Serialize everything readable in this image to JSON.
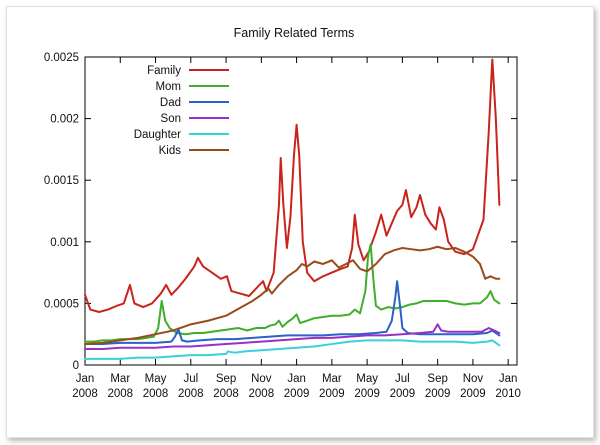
{
  "chart_data": {
    "type": "line",
    "title": "Family Related Terms",
    "xlabel": "",
    "ylabel": "",
    "ylim": [
      0,
      0.0025
    ],
    "yticks": [
      0,
      0.0005,
      0.001,
      0.0015,
      0.002,
      0.0025
    ],
    "ytick_labels": [
      "0",
      "0.0005",
      "0.001",
      "0.0015",
      "0.002",
      "0.0025"
    ],
    "xlim": [
      0,
      24.5
    ],
    "xticks": [
      {
        "x": 0,
        "month": "Jan",
        "year": "2008"
      },
      {
        "x": 2,
        "month": "Mar",
        "year": "2008"
      },
      {
        "x": 4,
        "month": "May",
        "year": "2008"
      },
      {
        "x": 6,
        "month": "Jul",
        "year": "2008"
      },
      {
        "x": 8,
        "month": "Sep",
        "year": "2008"
      },
      {
        "x": 10,
        "month": "Nov",
        "year": "2008"
      },
      {
        "x": 12,
        "month": "Jan",
        "year": "2009"
      },
      {
        "x": 14,
        "month": "Mar",
        "year": "2009"
      },
      {
        "x": 16,
        "month": "May",
        "year": "2009"
      },
      {
        "x": 18,
        "month": "Jul",
        "year": "2009"
      },
      {
        "x": 20,
        "month": "Sep",
        "year": "2009"
      },
      {
        "x": 22,
        "month": "Nov",
        "year": "2009"
      },
      {
        "x": 24,
        "month": "Jan",
        "year": "2010"
      }
    ],
    "grid": false,
    "legend_position": "top-left",
    "series": [
      {
        "name": "Family",
        "color": "#c8241c",
        "points": [
          [
            0,
            0.00057
          ],
          [
            0.3,
            0.00045
          ],
          [
            0.8,
            0.00043
          ],
          [
            1.3,
            0.00045
          ],
          [
            1.8,
            0.00048
          ],
          [
            2.2,
            0.0005
          ],
          [
            2.55,
            0.00065
          ],
          [
            2.8,
            0.0005
          ],
          [
            3.3,
            0.00047
          ],
          [
            3.8,
            0.0005
          ],
          [
            4.3,
            0.00058
          ],
          [
            4.6,
            0.00065
          ],
          [
            4.9,
            0.00057
          ],
          [
            5.3,
            0.00063
          ],
          [
            5.7,
            0.0007
          ],
          [
            6.2,
            0.0008
          ],
          [
            6.4,
            0.00087
          ],
          [
            6.7,
            0.0008
          ],
          [
            7.2,
            0.00075
          ],
          [
            7.7,
            0.0007
          ],
          [
            8.05,
            0.00072
          ],
          [
            8.3,
            0.0006
          ],
          [
            8.8,
            0.00058
          ],
          [
            9.3,
            0.00056
          ],
          [
            9.7,
            0.00062
          ],
          [
            10.1,
            0.00068
          ],
          [
            10.3,
            0.0006
          ],
          [
            10.7,
            0.00075
          ],
          [
            11.0,
            0.0013
          ],
          [
            11.1,
            0.00168
          ],
          [
            11.25,
            0.0013
          ],
          [
            11.45,
            0.00095
          ],
          [
            11.65,
            0.0012
          ],
          [
            11.85,
            0.0017
          ],
          [
            12.0,
            0.00195
          ],
          [
            12.15,
            0.0017
          ],
          [
            12.35,
            0.001
          ],
          [
            12.6,
            0.00075
          ],
          [
            13.0,
            0.00068
          ],
          [
            13.5,
            0.00072
          ],
          [
            14.0,
            0.00075
          ],
          [
            14.5,
            0.00078
          ],
          [
            14.9,
            0.0008
          ],
          [
            15.15,
            0.00095
          ],
          [
            15.3,
            0.00122
          ],
          [
            15.5,
            0.00098
          ],
          [
            15.8,
            0.00085
          ],
          [
            16.1,
            0.00092
          ],
          [
            16.5,
            0.00108
          ],
          [
            16.8,
            0.00122
          ],
          [
            17.1,
            0.00105
          ],
          [
            17.4,
            0.00115
          ],
          [
            17.7,
            0.00125
          ],
          [
            18.0,
            0.0013
          ],
          [
            18.2,
            0.00142
          ],
          [
            18.5,
            0.0012
          ],
          [
            18.8,
            0.00128
          ],
          [
            19.0,
            0.00138
          ],
          [
            19.3,
            0.00122
          ],
          [
            19.6,
            0.00115
          ],
          [
            19.9,
            0.0011
          ],
          [
            20.1,
            0.00128
          ],
          [
            20.35,
            0.00118
          ],
          [
            20.6,
            0.001
          ],
          [
            21.0,
            0.00092
          ],
          [
            21.5,
            0.0009
          ],
          [
            22.0,
            0.00094
          ],
          [
            22.3,
            0.00106
          ],
          [
            22.6,
            0.00118
          ],
          [
            22.9,
            0.0019
          ],
          [
            23.1,
            0.00248
          ],
          [
            23.3,
            0.002
          ],
          [
            23.5,
            0.0013
          ]
        ]
      },
      {
        "name": "Mom",
        "color": "#3fae2a",
        "points": [
          [
            0,
            0.00019
          ],
          [
            0.5,
            0.00019
          ],
          [
            1,
            0.0002
          ],
          [
            1.5,
            0.0002
          ],
          [
            2,
            0.00021
          ],
          [
            2.5,
            0.00021
          ],
          [
            3,
            0.00021
          ],
          [
            3.5,
            0.00022
          ],
          [
            3.9,
            0.00023
          ],
          [
            4.15,
            0.0003
          ],
          [
            4.35,
            0.00052
          ],
          [
            4.55,
            0.00036
          ],
          [
            4.8,
            0.0003
          ],
          [
            5.2,
            0.00026
          ],
          [
            5.7,
            0.00025
          ],
          [
            6.2,
            0.00026
          ],
          [
            6.7,
            0.00026
          ],
          [
            7.2,
            0.00027
          ],
          [
            7.7,
            0.00028
          ],
          [
            8.2,
            0.00029
          ],
          [
            8.7,
            0.0003
          ],
          [
            9.2,
            0.00028
          ],
          [
            9.7,
            0.0003
          ],
          [
            10.2,
            0.0003
          ],
          [
            10.5,
            0.00032
          ],
          [
            10.8,
            0.00033
          ],
          [
            11.0,
            0.00036
          ],
          [
            11.2,
            0.00031
          ],
          [
            11.5,
            0.00035
          ],
          [
            11.8,
            0.00038
          ],
          [
            12.0,
            0.00041
          ],
          [
            12.2,
            0.00034
          ],
          [
            12.6,
            0.00036
          ],
          [
            13.0,
            0.00038
          ],
          [
            13.5,
            0.00039
          ],
          [
            14.0,
            0.0004
          ],
          [
            14.5,
            0.0004
          ],
          [
            15.0,
            0.00041
          ],
          [
            15.3,
            0.00045
          ],
          [
            15.6,
            0.00042
          ],
          [
            15.9,
            0.0006
          ],
          [
            16.05,
            0.00088
          ],
          [
            16.2,
            0.00098
          ],
          [
            16.35,
            0.0007
          ],
          [
            16.5,
            0.00048
          ],
          [
            16.8,
            0.00045
          ],
          [
            17.2,
            0.00047
          ],
          [
            17.6,
            0.00046
          ],
          [
            18.0,
            0.00047
          ],
          [
            18.4,
            0.00049
          ],
          [
            18.8,
            0.0005
          ],
          [
            19.2,
            0.00052
          ],
          [
            19.6,
            0.00052
          ],
          [
            20.0,
            0.00052
          ],
          [
            20.5,
            0.00052
          ],
          [
            21.0,
            0.0005
          ],
          [
            21.5,
            0.00049
          ],
          [
            22.0,
            0.0005
          ],
          [
            22.4,
            0.0005
          ],
          [
            22.8,
            0.00055
          ],
          [
            23.0,
            0.0006
          ],
          [
            23.2,
            0.00053
          ],
          [
            23.5,
            0.0005
          ]
        ]
      },
      {
        "name": "Dad",
        "color": "#2a62c8",
        "points": [
          [
            0,
            0.00017
          ],
          [
            1,
            0.00017
          ],
          [
            2,
            0.00018
          ],
          [
            3,
            0.00018
          ],
          [
            4,
            0.00018
          ],
          [
            4.9,
            0.00019
          ],
          [
            5.1,
            0.00023
          ],
          [
            5.3,
            0.00029
          ],
          [
            5.5,
            0.0002
          ],
          [
            5.8,
            0.00019
          ],
          [
            6.5,
            0.0002
          ],
          [
            7.5,
            0.00021
          ],
          [
            8.5,
            0.00021
          ],
          [
            9.5,
            0.00022
          ],
          [
            10.5,
            0.00023
          ],
          [
            11.5,
            0.00024
          ],
          [
            12.5,
            0.00024
          ],
          [
            13.5,
            0.00024
          ],
          [
            14.5,
            0.00025
          ],
          [
            15.5,
            0.00025
          ],
          [
            16.5,
            0.00026
          ],
          [
            17.1,
            0.00027
          ],
          [
            17.4,
            0.00036
          ],
          [
            17.6,
            0.00055
          ],
          [
            17.7,
            0.00068
          ],
          [
            17.85,
            0.0005
          ],
          [
            18.0,
            0.0003
          ],
          [
            18.3,
            0.00026
          ],
          [
            19,
            0.00025
          ],
          [
            20,
            0.00025
          ],
          [
            21,
            0.00025
          ],
          [
            22,
            0.00025
          ],
          [
            22.8,
            0.00026
          ],
          [
            23.1,
            0.00028
          ],
          [
            23.5,
            0.00024
          ]
        ]
      },
      {
        "name": "Son",
        "color": "#9a2fc8",
        "points": [
          [
            0,
            0.00013
          ],
          [
            1,
            0.00013
          ],
          [
            2,
            0.00014
          ],
          [
            3,
            0.00014
          ],
          [
            4,
            0.00014
          ],
          [
            5,
            0.00015
          ],
          [
            6,
            0.00015
          ],
          [
            7,
            0.00016
          ],
          [
            8,
            0.00017
          ],
          [
            9,
            0.00018
          ],
          [
            10,
            0.00019
          ],
          [
            11,
            0.0002
          ],
          [
            12,
            0.00021
          ],
          [
            13,
            0.00022
          ],
          [
            14,
            0.00022
          ],
          [
            15,
            0.00023
          ],
          [
            16,
            0.00024
          ],
          [
            17,
            0.00024
          ],
          [
            18,
            0.00025
          ],
          [
            19,
            0.00026
          ],
          [
            19.75,
            0.00027
          ],
          [
            20.0,
            0.00033
          ],
          [
            20.2,
            0.00028
          ],
          [
            20.6,
            0.00027
          ],
          [
            21.5,
            0.00027
          ],
          [
            22.5,
            0.00027
          ],
          [
            22.9,
            0.0003
          ],
          [
            23.2,
            0.00028
          ],
          [
            23.5,
            0.00026
          ]
        ]
      },
      {
        "name": "Daughter",
        "color": "#38d0dc",
        "points": [
          [
            0,
            5e-05
          ],
          [
            1,
            5e-05
          ],
          [
            2,
            5e-05
          ],
          [
            3,
            6e-05
          ],
          [
            4,
            6e-05
          ],
          [
            5,
            7e-05
          ],
          [
            6,
            8e-05
          ],
          [
            7,
            8e-05
          ],
          [
            8,
            9e-05
          ],
          [
            8.1,
            0.00011
          ],
          [
            8.5,
            0.0001
          ],
          [
            9,
            0.00011
          ],
          [
            10,
            0.00012
          ],
          [
            11,
            0.00013
          ],
          [
            12,
            0.00014
          ],
          [
            13,
            0.00015
          ],
          [
            14,
            0.00017
          ],
          [
            15,
            0.00019
          ],
          [
            16,
            0.0002
          ],
          [
            17,
            0.0002
          ],
          [
            18,
            0.0002
          ],
          [
            19,
            0.00019
          ],
          [
            20,
            0.00019
          ],
          [
            21,
            0.00019
          ],
          [
            22,
            0.00018
          ],
          [
            22.8,
            0.00019
          ],
          [
            23.1,
            0.0002
          ],
          [
            23.5,
            0.00016
          ]
        ]
      },
      {
        "name": "Kids",
        "color": "#9a4a1a",
        "points": [
          [
            0,
            0.00017
          ],
          [
            1,
            0.00018
          ],
          [
            2,
            0.0002
          ],
          [
            3,
            0.00022
          ],
          [
            4,
            0.00025
          ],
          [
            5,
            0.00028
          ],
          [
            6,
            0.00033
          ],
          [
            7,
            0.00036
          ],
          [
            8,
            0.0004
          ],
          [
            9,
            0.00048
          ],
          [
            9.5,
            0.00052
          ],
          [
            10,
            0.00057
          ],
          [
            10.4,
            0.00062
          ],
          [
            10.6,
            0.00058
          ],
          [
            11,
            0.00065
          ],
          [
            11.5,
            0.00072
          ],
          [
            12,
            0.00077
          ],
          [
            12.3,
            0.00082
          ],
          [
            12.6,
            0.0008
          ],
          [
            13,
            0.00084
          ],
          [
            13.5,
            0.00082
          ],
          [
            14,
            0.00085
          ],
          [
            14.4,
            0.00079
          ],
          [
            14.8,
            0.00082
          ],
          [
            15.2,
            0.00085
          ],
          [
            15.6,
            0.00078
          ],
          [
            16,
            0.00076
          ],
          [
            16.5,
            0.00082
          ],
          [
            17,
            0.0009
          ],
          [
            17.5,
            0.00093
          ],
          [
            18,
            0.00095
          ],
          [
            18.5,
            0.00094
          ],
          [
            19,
            0.00093
          ],
          [
            19.5,
            0.00094
          ],
          [
            20,
            0.00096
          ],
          [
            20.5,
            0.00094
          ],
          [
            21,
            0.00095
          ],
          [
            21.5,
            0.00092
          ],
          [
            22,
            0.00088
          ],
          [
            22.4,
            0.00082
          ],
          [
            22.7,
            0.0007
          ],
          [
            23.0,
            0.00072
          ],
          [
            23.3,
            0.0007
          ],
          [
            23.5,
            0.0007
          ]
        ]
      }
    ]
  }
}
